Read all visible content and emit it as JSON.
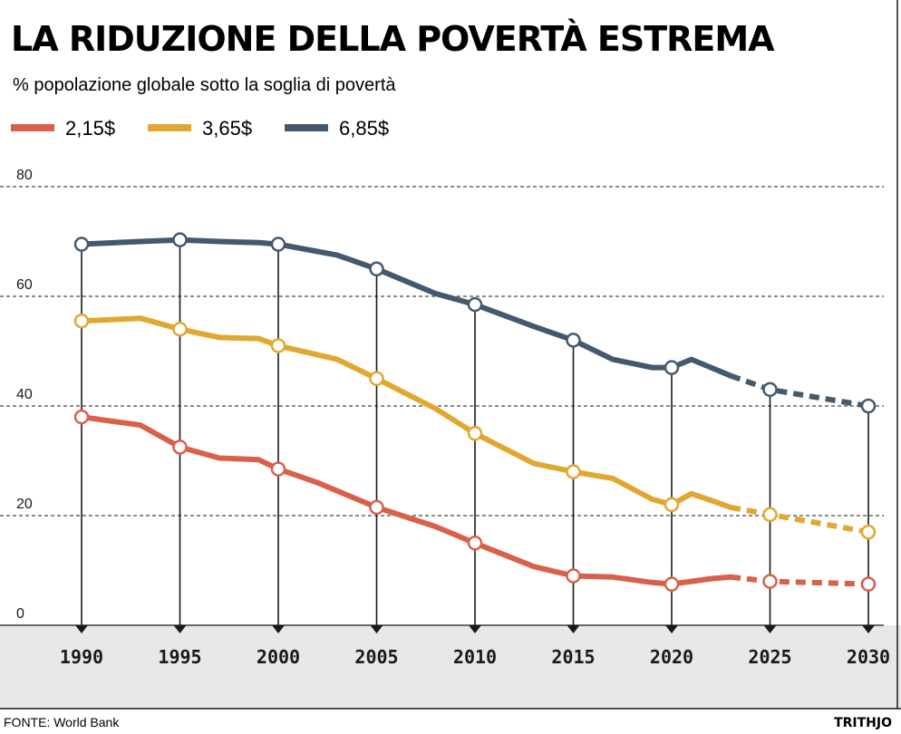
{
  "title": "LA RIDUZIONE DELLA POVERTÀ ESTREMA",
  "source": "FONTE: World Bank",
  "logo": "TRITHJO",
  "colors": {
    "background": "#ffffff",
    "footer_band": "#e8e8e8",
    "axis": "#1a1a1a",
    "grid": "#1a1a1a"
  },
  "chart_data": {
    "type": "line",
    "title": "LA RIDUZIONE DELLA POVERTÀ ESTREMA",
    "subtitle": "% popolazione globale sotto la soglia di povertà",
    "xlabel": "",
    "ylabel": "",
    "xlim": [
      1990,
      2030
    ],
    "ylim": [
      0,
      80
    ],
    "y_ticks": [
      0,
      20,
      40,
      60,
      80
    ],
    "x_ticks": [
      1990,
      1995,
      2000,
      2005,
      2010,
      2015,
      2020,
      2025,
      2030
    ],
    "grid": "horizontal dashed",
    "legend_position": "top-left",
    "projection_start": 2023,
    "series": [
      {
        "name": "2,15$",
        "color": "#d9604a",
        "x": [
          1990,
          1993,
          1995,
          1997,
          1999,
          2000,
          2002,
          2005,
          2008,
          2010,
          2013,
          2015,
          2017,
          2019,
          2020,
          2021,
          2022,
          2023,
          2025,
          2030
        ],
        "y": [
          38,
          36.5,
          32.5,
          30.5,
          30.2,
          28.5,
          26,
          21.5,
          18,
          15,
          10.7,
          9,
          8.8,
          7.8,
          7.5,
          8,
          8.5,
          8.8,
          8,
          7.5
        ],
        "markers": [
          1990,
          1995,
          2000,
          2005,
          2010,
          2015,
          2020,
          2025,
          2030
        ]
      },
      {
        "name": "3,65$",
        "color": "#e0a830",
        "x": [
          1990,
          1993,
          1995,
          1997,
          1999,
          2000,
          2003,
          2005,
          2008,
          2010,
          2013,
          2015,
          2017,
          2019,
          2020,
          2021,
          2022,
          2023,
          2025,
          2030
        ],
        "y": [
          55.5,
          56,
          54,
          52.5,
          52.3,
          51,
          48.5,
          45,
          39.5,
          35,
          29.5,
          28,
          26.8,
          23,
          22,
          24,
          22.8,
          21.5,
          20.2,
          17
        ],
        "markers": [
          1990,
          1995,
          2000,
          2005,
          2010,
          2015,
          2020,
          2025,
          2030
        ]
      },
      {
        "name": "6,85$",
        "color": "#44586e",
        "x": [
          1990,
          1993,
          1995,
          1997,
          1999,
          2000,
          2003,
          2005,
          2008,
          2010,
          2013,
          2015,
          2017,
          2019,
          2020,
          2021,
          2022,
          2023,
          2025,
          2030
        ],
        "y": [
          69.5,
          70,
          70.3,
          70,
          69.8,
          69.5,
          67.5,
          65,
          60.5,
          58.5,
          54.5,
          52,
          48.5,
          47,
          47,
          48.5,
          47,
          45.5,
          43,
          40
        ],
        "markers": [
          1990,
          1995,
          2000,
          2005,
          2010,
          2015,
          2020,
          2025,
          2030
        ]
      }
    ]
  }
}
